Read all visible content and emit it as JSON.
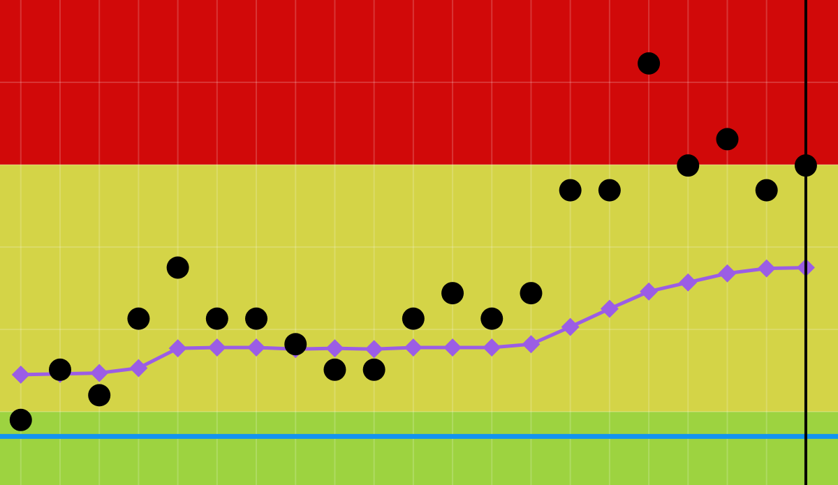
{
  "chart_data": {
    "type": "scatter",
    "x": [
      0,
      1,
      2,
      3,
      4,
      5,
      6,
      7,
      8,
      9,
      10,
      11,
      12,
      13,
      14,
      15,
      16,
      17,
      18,
      19,
      20
    ],
    "xlim": [
      -0.53,
      20.82
    ],
    "ylim": [
      0.11,
      6
    ],
    "xgrid": [
      0,
      1,
      2,
      3,
      4,
      5,
      6,
      7,
      8,
      9,
      10,
      11,
      12,
      13,
      14,
      15,
      16,
      17,
      18,
      19,
      20
    ],
    "ygrid": [
      1,
      2,
      3,
      4,
      5
    ],
    "bands": [
      {
        "from": 0.11,
        "to": 1,
        "color": "#9dd340"
      },
      {
        "from": 1,
        "to": 4,
        "color": "#d4d447"
      },
      {
        "from": 4,
        "to": 6,
        "color": "#d10909"
      }
    ],
    "hline": {
      "value": 0.7,
      "color": "#1394f0"
    },
    "vline": {
      "value": 20,
      "color": "#000000"
    },
    "series": [
      {
        "kind": "line",
        "color": "#9b5de5",
        "values": [
          1.45,
          1.46,
          1.47,
          1.53,
          1.77,
          1.78,
          1.78,
          1.76,
          1.77,
          1.76,
          1.78,
          1.78,
          1.78,
          1.82,
          2.03,
          2.25,
          2.46,
          2.57,
          2.68,
          2.74,
          2.75
        ]
      },
      {
        "kind": "dots",
        "color": "#000000",
        "values": [
          0.9,
          1.51,
          1.2,
          2.13,
          2.75,
          2.13,
          2.13,
          1.82,
          1.51,
          1.51,
          2.13,
          2.44,
          2.13,
          2.44,
          3.69,
          3.69,
          5.23,
          3.99,
          4.31,
          3.69,
          3.99
        ]
      }
    ]
  }
}
